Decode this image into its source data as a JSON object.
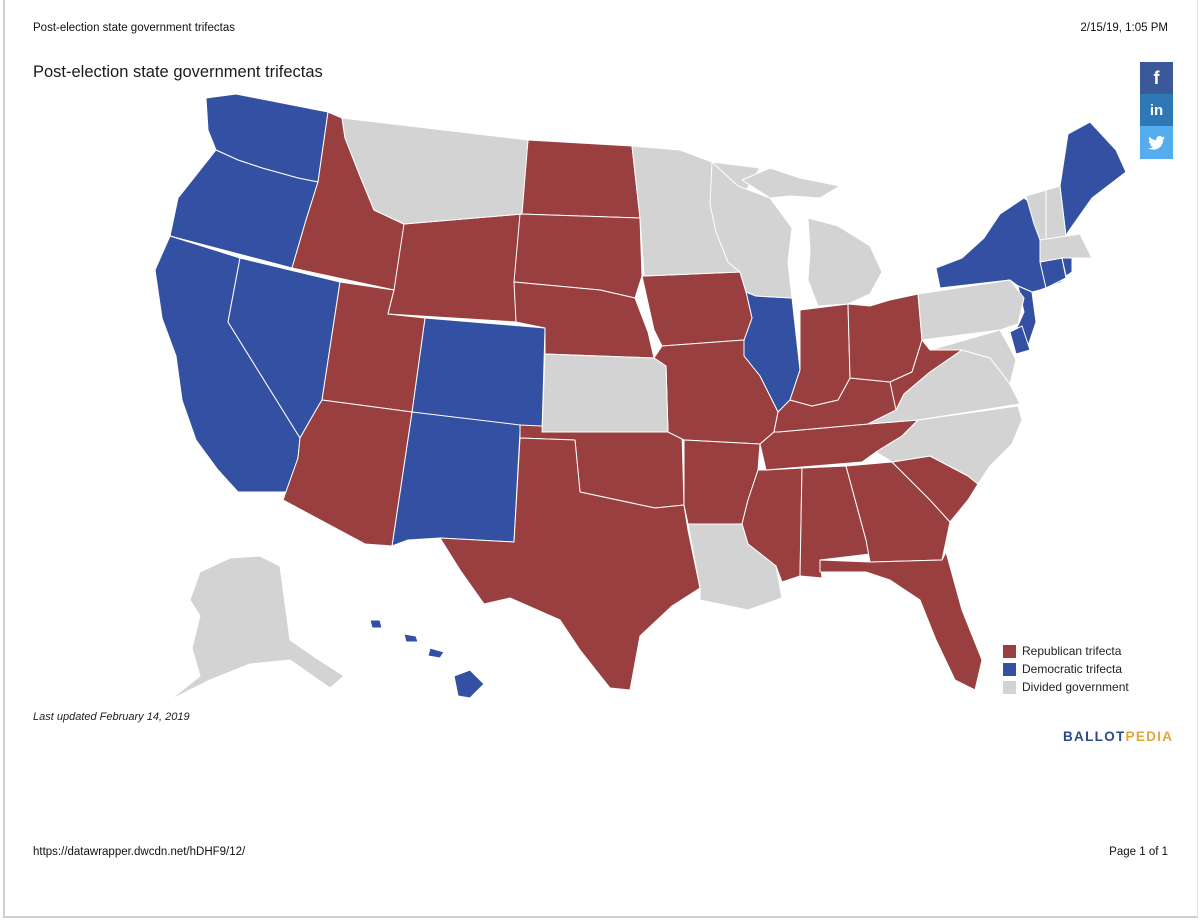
{
  "print_header": {
    "title": "Post-election state government trifectas",
    "datetime": "2/15/19, 1:05 PM"
  },
  "print_footer": {
    "url": "https://datawrapper.dwcdn.net/hDHF9/12/",
    "page": "Page 1 of 1"
  },
  "map": {
    "title": "Post-election state government trifectas",
    "note": "Last updated February 14, 2019",
    "colors": {
      "republican": "#9a3f3f",
      "democratic": "#3350a3",
      "divided": "#d3d3d3"
    },
    "legend": [
      {
        "key": "republican",
        "label": "Republican trifecta"
      },
      {
        "key": "democratic",
        "label": "Democratic trifecta"
      },
      {
        "key": "divided",
        "label": "Divided government"
      }
    ],
    "states": {
      "WA": "democratic",
      "OR": "democratic",
      "CA": "democratic",
      "NV": "democratic",
      "CO": "democratic",
      "NM": "democratic",
      "IL": "democratic",
      "NY": "democratic",
      "NJ": "democratic",
      "DE": "democratic",
      "CT": "democratic",
      "RI": "democratic",
      "ME": "democratic",
      "HI": "democratic",
      "ID": "republican",
      "UT": "republican",
      "AZ": "republican",
      "WY": "republican",
      "ND": "republican",
      "SD": "republican",
      "NE": "republican",
      "OK": "republican",
      "TX": "republican",
      "IA": "republican",
      "MO": "republican",
      "AR": "republican",
      "MS": "republican",
      "AL": "republican",
      "GA": "republican",
      "FL": "republican",
      "SC": "republican",
      "TN": "republican",
      "KY": "republican",
      "IN": "republican",
      "OH": "republican",
      "WV": "republican",
      "MT": "divided",
      "KS": "divided",
      "MN": "divided",
      "WI": "divided",
      "MI": "divided",
      "LA": "divided",
      "PA": "divided",
      "VA": "divided",
      "NC": "divided",
      "MD": "divided",
      "VT": "divided",
      "NH": "divided",
      "MA": "divided",
      "AK": "divided"
    }
  },
  "share": {
    "facebook": "f",
    "linkedin": "in"
  },
  "logo": {
    "part1": "BALLOT",
    "part2": "PEDIA"
  }
}
